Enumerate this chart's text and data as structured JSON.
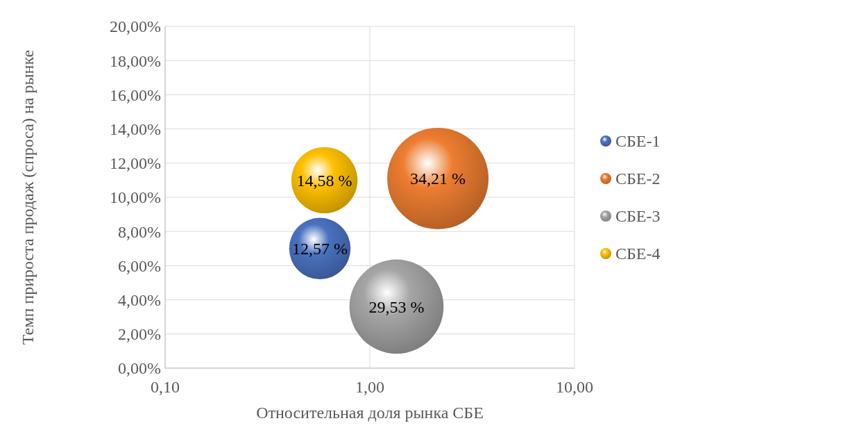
{
  "chart_data": {
    "type": "bubble",
    "xlabel": "Относительная доля рынка СБЕ",
    "ylabel": "Темп прироста продаж (спроса) на рынке",
    "log": "x",
    "xlim": [
      0.1,
      10
    ],
    "xticks": [
      {
        "value": 0.1,
        "label": "0,10"
      },
      {
        "value": 1,
        "label": "1,00"
      },
      {
        "value": 10,
        "label": "10,00"
      }
    ],
    "ylim": [
      0,
      20
    ],
    "yticks": [
      {
        "value": 0,
        "label": "0,00%"
      },
      {
        "value": 2,
        "label": "2,00%"
      },
      {
        "value": 4,
        "label": "4,00%"
      },
      {
        "value": 6,
        "label": "6,00%"
      },
      {
        "value": 8,
        "label": "8,00%"
      },
      {
        "value": 10,
        "label": "10,00%"
      },
      {
        "value": 12,
        "label": "12,00%"
      },
      {
        "value": 14,
        "label": "14,00%"
      },
      {
        "value": 16,
        "label": "16,00%"
      },
      {
        "value": 18,
        "label": "18,00%"
      },
      {
        "value": 20,
        "label": "20,00%"
      }
    ],
    "grid": true,
    "legend": "right",
    "series": [
      {
        "name": "СБЕ-1",
        "color": "#4a72c0",
        "x": [
          0.57
        ],
        "values": [
          7.0
        ],
        "sizes": [
          12.57
        ],
        "value_labels": [
          "12,57 %"
        ]
      },
      {
        "name": "СБЕ-2",
        "color": "#ed7d31",
        "x": [
          2.15
        ],
        "values": [
          11.1
        ],
        "sizes": [
          34.21
        ],
        "value_labels": [
          "34,21 %"
        ]
      },
      {
        "name": "СБЕ-3",
        "color": "#a5a5a5",
        "x": [
          1.35
        ],
        "values": [
          3.6
        ],
        "sizes": [
          29.53
        ],
        "value_labels": [
          "29,53 %"
        ]
      },
      {
        "name": "СБЕ-4",
        "color": "#ffc000",
        "x": [
          0.6
        ],
        "values": [
          11.0
        ],
        "sizes": [
          14.58
        ],
        "value_labels": [
          "14,58 %"
        ]
      }
    ]
  }
}
